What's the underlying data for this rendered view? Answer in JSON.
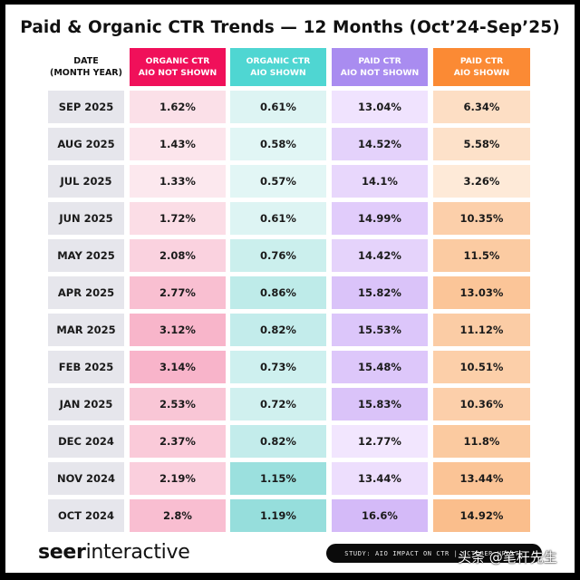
{
  "title": "Paid & Organic CTR Trends — 12 Months (Oct’24-Sep’25)",
  "headers": {
    "date": [
      "DATE",
      "(MONTH YEAR)"
    ],
    "columns": [
      {
        "line1": "ORGANIC CTR",
        "line2": "AIO NOT SHOWN",
        "color": "#f0105a"
      },
      {
        "line1": "ORGANIC CTR",
        "line2": "AIO SHOWN",
        "color": "#4fd6d2"
      },
      {
        "line1": "PAID CTR",
        "line2": "AIO NOT SHOWN",
        "color": "#a98cf0"
      },
      {
        "line1": "PAID CTR",
        "line2": "AIO SHOWN",
        "color": "#fb8a34"
      }
    ]
  },
  "rows": [
    {
      "date": "SEP 2025",
      "values": [
        "1.62%",
        "0.61%",
        "13.04%",
        "6.34%"
      ]
    },
    {
      "date": "AUG 2025",
      "values": [
        "1.43%",
        "0.58%",
        "14.52%",
        "5.58%"
      ]
    },
    {
      "date": "JUL 2025",
      "values": [
        "1.33%",
        "0.57%",
        "14.1%",
        "3.26%"
      ]
    },
    {
      "date": "JUN 2025",
      "values": [
        "1.72%",
        "0.61%",
        "14.99%",
        "10.35%"
      ]
    },
    {
      "date": "MAY 2025",
      "values": [
        "2.08%",
        "0.76%",
        "14.42%",
        "11.5%"
      ]
    },
    {
      "date": "APR 2025",
      "values": [
        "2.77%",
        "0.86%",
        "15.82%",
        "13.03%"
      ]
    },
    {
      "date": "MAR 2025",
      "values": [
        "3.12%",
        "0.82%",
        "15.53%",
        "11.12%"
      ]
    },
    {
      "date": "FEB 2025",
      "values": [
        "3.14%",
        "0.73%",
        "15.48%",
        "10.51%"
      ]
    },
    {
      "date": "JAN 2025",
      "values": [
        "2.53%",
        "0.72%",
        "15.83%",
        "10.36%"
      ]
    },
    {
      "date": "DEC 2024",
      "values": [
        "2.37%",
        "0.82%",
        "12.77%",
        "11.8%"
      ]
    },
    {
      "date": "NOV 2024",
      "values": [
        "2.19%",
        "1.15%",
        "13.44%",
        "13.44%"
      ]
    },
    {
      "date": "OCT 2024",
      "values": [
        "2.8%",
        "1.19%",
        "16.6%",
        "14.92%"
      ]
    }
  ],
  "footer": {
    "logo_bold": "seer",
    "logo_light": "interactive",
    "pill": "STUDY: AIO IMPACT ON CTR | OCTOBER UPDATE",
    "watermark": "头条 @笔杆先生"
  },
  "chart_data": {
    "type": "heatmap",
    "title": "Paid & Organic CTR Trends — 12 Months (Oct’24-Sep’25)",
    "row_label": "DATE (MONTH YEAR)",
    "categories": [
      "SEP 2025",
      "AUG 2025",
      "JUL 2025",
      "JUN 2025",
      "MAY 2025",
      "APR 2025",
      "MAR 2025",
      "FEB 2025",
      "JAN 2025",
      "DEC 2024",
      "NOV 2024",
      "OCT 2024"
    ],
    "series": [
      {
        "name": "Organic CTR AIO Not Shown",
        "values": [
          1.62,
          1.43,
          1.33,
          1.72,
          2.08,
          2.77,
          3.12,
          3.14,
          2.53,
          2.37,
          2.19,
          2.8
        ]
      },
      {
        "name": "Organic CTR AIO Shown",
        "values": [
          0.61,
          0.58,
          0.57,
          0.61,
          0.76,
          0.86,
          0.82,
          0.73,
          0.72,
          0.82,
          1.15,
          1.19
        ]
      },
      {
        "name": "Paid CTR AIO Not Shown",
        "values": [
          13.04,
          14.52,
          14.1,
          14.99,
          14.42,
          15.82,
          15.53,
          15.48,
          15.83,
          12.77,
          13.44,
          16.6
        ]
      },
      {
        "name": "Paid CTR AIO Shown",
        "values": [
          6.34,
          5.58,
          3.26,
          10.35,
          11.5,
          13.03,
          11.12,
          10.51,
          10.36,
          11.8,
          13.44,
          14.92
        ]
      }
    ],
    "unit": "%"
  }
}
